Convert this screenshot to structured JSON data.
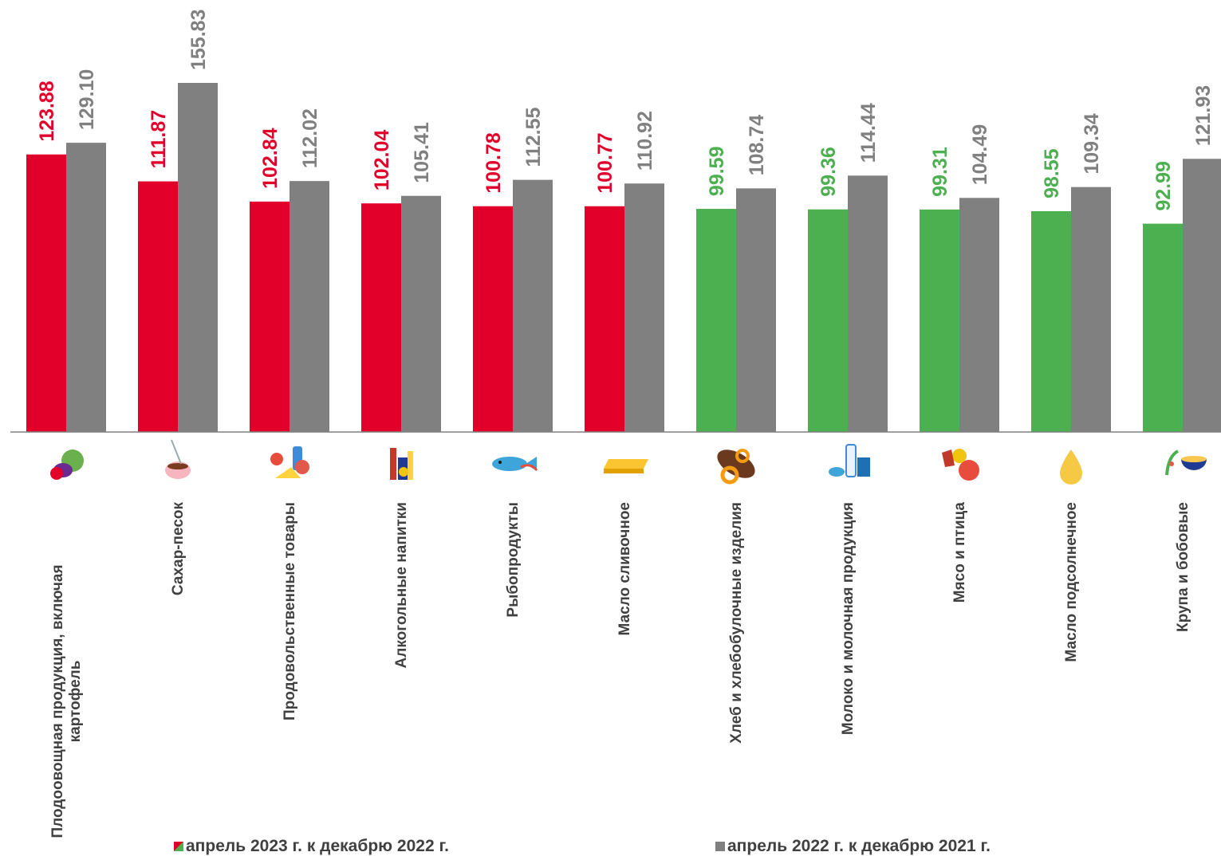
{
  "chart_data": {
    "type": "bar",
    "categories": [
      "Плодоовощная продукция,  включая картофель",
      "Сахар-песок",
      "Продовольственные товары",
      "Алкогольные напитки",
      "Рыбопродукты",
      "Масло сливочное",
      "Хлеб и хлебобулочные изделия",
      "Молоко и молочная продукция",
      "Мясо и птица",
      "Масло подсолнечное",
      "Крупа и бобовые"
    ],
    "icons": [
      "vegetables-icon",
      "sugar-icon",
      "groceries-icon",
      "alcohol-icon",
      "fish-icon",
      "butter-icon",
      "bread-icon",
      "milk-icon",
      "meat-icon",
      "oil-drop-icon",
      "cereal-icon"
    ],
    "series": [
      {
        "name": "апрель 2023 г. к декабрю 2022 г.",
        "values": [
          123.88,
          111.87,
          102.84,
          102.04,
          100.78,
          100.77,
          99.59,
          99.36,
          99.31,
          98.55,
          92.99
        ],
        "colors": [
          "#e2002b",
          "#e2002b",
          "#e2002b",
          "#e2002b",
          "#e2002b",
          "#e2002b",
          "#4caf50",
          "#4caf50",
          "#4caf50",
          "#4caf50",
          "#4caf50"
        ]
      },
      {
        "name": "апрель  2022 г. к декабрю 2021 г.",
        "values": [
          129.1,
          155.83,
          112.02,
          105.41,
          112.55,
          110.92,
          108.74,
          114.44,
          104.49,
          109.34,
          121.93
        ],
        "color": "#808080"
      }
    ],
    "colors": {
      "above": "#e2002b",
      "below": "#4caf50",
      "prior": "#808080",
      "label_text": "#404040"
    },
    "ylim": [
      0,
      155.83
    ],
    "grid": false,
    "legend_position": "bottom"
  }
}
